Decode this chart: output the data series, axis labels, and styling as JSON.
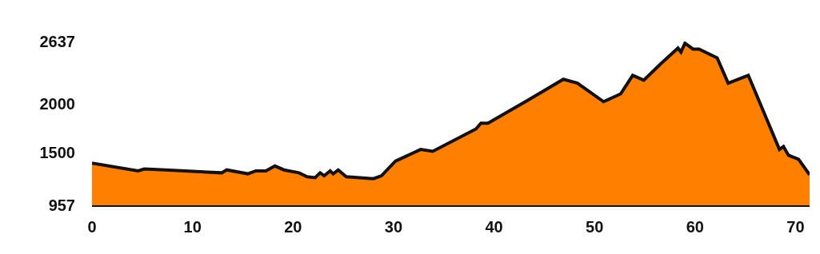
{
  "chart_data": {
    "type": "area",
    "x": [
      0,
      4.6,
      5.2,
      7.3,
      12.9,
      13.4,
      15.5,
      16.3,
      17.3,
      18.2,
      19.1,
      20.6,
      21.4,
      22.2,
      22.7,
      23.1,
      23.7,
      24.0,
      24.5,
      25.3,
      28.0,
      28.8,
      30.2,
      32.7,
      33.9,
      38.2,
      38.7,
      39.4,
      43.3,
      46.9,
      48.3,
      50.9,
      52.6,
      53.8,
      54.9,
      56.6,
      58.3,
      58.6,
      59.0,
      59.8,
      60.4,
      62.2,
      63.3,
      65.3,
      68.4,
      68.8,
      69.3,
      70.3,
      71.4
    ],
    "series": [
      {
        "color": "#ff7f00",
        "values": [
          1390,
          1310,
          1330,
          1320,
          1290,
          1320,
          1280,
          1310,
          1310,
          1360,
          1320,
          1290,
          1250,
          1240,
          1290,
          1260,
          1310,
          1280,
          1320,
          1250,
          1230,
          1260,
          1410,
          1530,
          1510,
          1740,
          1800,
          1800,
          2030,
          2250,
          2210,
          2020,
          2100,
          2290,
          2240,
          2410,
          2570,
          2530,
          2620,
          2560,
          2560,
          2470,
          2210,
          2290,
          1530,
          1560,
          1470,
          1430,
          1270
        ]
      }
    ],
    "xlim": [
      0,
      71.4
    ],
    "ylim": [
      957,
      2637
    ],
    "xticks": [
      0,
      10,
      20,
      30,
      40,
      50,
      60,
      70
    ],
    "yticks": [
      957,
      1500,
      2000,
      2637
    ],
    "legend": false
  }
}
